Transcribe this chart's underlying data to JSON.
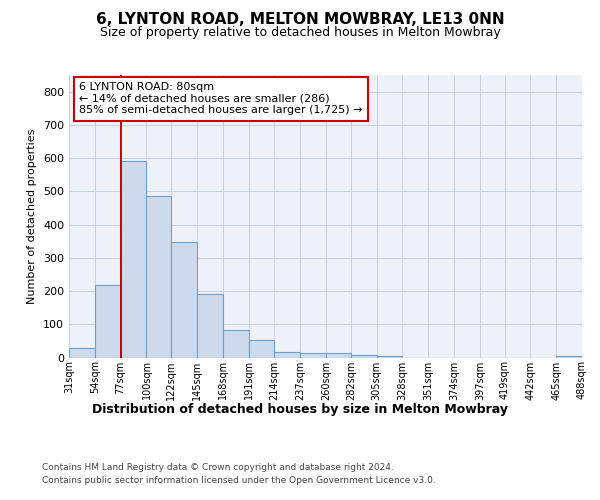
{
  "title": "6, LYNTON ROAD, MELTON MOWBRAY, LE13 0NN",
  "subtitle": "Size of property relative to detached houses in Melton Mowbray",
  "xlabel": "Distribution of detached houses by size in Melton Mowbray",
  "ylabel": "Number of detached properties",
  "footer_line1": "Contains HM Land Registry data © Crown copyright and database right 2024.",
  "footer_line2": "Contains public sector information licensed under the Open Government Licence v3.0.",
  "annotation_line1": "6 LYNTON ROAD: 80sqm",
  "annotation_line2": "← 14% of detached houses are smaller (286)",
  "annotation_line3": "85% of semi-detached houses are larger (1,725) →",
  "red_line_bin_index": 2,
  "bin_edges": [
    31,
    54,
    77,
    100,
    122,
    145,
    168,
    191,
    214,
    237,
    260,
    282,
    305,
    328,
    351,
    374,
    397,
    419,
    442,
    465,
    488
  ],
  "bar_heights": [
    30,
    218,
    590,
    487,
    348,
    190,
    84,
    52,
    17,
    14,
    13,
    8,
    5,
    0,
    0,
    0,
    0,
    0,
    0,
    4
  ],
  "bar_color": "#cddaeb",
  "bar_edge_color": "#6a9fd0",
  "red_line_color": "#cc0000",
  "grid_color": "#c5cfe0",
  "bg_color": "#eef2f8",
  "ylim": [
    0,
    850
  ],
  "yticks": [
    0,
    100,
    200,
    300,
    400,
    500,
    600,
    700,
    800
  ],
  "annotation_box_facecolor": "#ffffff",
  "annotation_box_edgecolor": "#cc0000",
  "title_fontsize": 11,
  "subtitle_fontsize": 9,
  "ylabel_fontsize": 8,
  "xlabel_fontsize": 9,
  "footer_fontsize": 6.5
}
